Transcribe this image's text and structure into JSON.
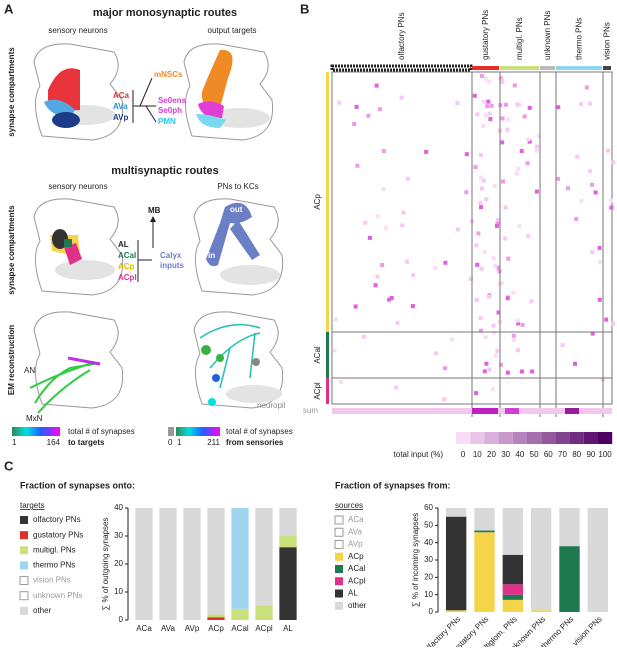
{
  "panel_a": {
    "label": "A",
    "title_mono": "major monosynaptic routes",
    "sensory_neurons": "sensory neurons",
    "output_targets": "output targets",
    "synapse_compartments": "synapse compartments",
    "inputs": [
      "ACa",
      "AVa",
      "AVp"
    ],
    "outputs": [
      "mNSCs",
      "Se0ens",
      "Se0ph",
      "PMN"
    ],
    "title_multi": "multisynaptic routes",
    "sensory_neurons_2": "sensory neurons",
    "pns_to_kcs": "PNs to KCs",
    "mb": "MB",
    "inputs_2": [
      "AL",
      "ACal",
      "ACp",
      "ACpl"
    ],
    "calyx": [
      "Calyx",
      "inputs"
    ],
    "out": "out",
    "in": "in",
    "synapse_compartments_2": "synapse compartments",
    "em": "EM reconstruction",
    "an": "AN",
    "mxn": "MxN",
    "neuropil": "neuropil",
    "scale_targets": {
      "min": 1,
      "max": 164,
      "text": "total # of synapses",
      "bold": "to targets"
    },
    "scale_sensories": {
      "zero": 0,
      "min": 1,
      "max": 211,
      "text": "total # of synapses",
      "bold": "from sensories"
    }
  },
  "panel_b": {
    "label": "B",
    "columns": [
      "olfactory PNs",
      "gustatory PNs",
      "multigl. PNs",
      "unknown PNs",
      "thermo PNs",
      "vision PNs"
    ],
    "rows": [
      "ACp",
      "ACal",
      "ACpl"
    ],
    "sum": "sum",
    "colorbar_label": "total input (%)",
    "colorbar_ticks": [
      0,
      10,
      20,
      30,
      40,
      50,
      60,
      70,
      80,
      90,
      100
    ]
  },
  "panel_c": {
    "label": "C"
  },
  "chart_data": [
    {
      "type": "bar",
      "stacked": true,
      "title": "Fraction of synapses onto:",
      "legend_title": "targets",
      "y_label": "∑ % of outgoing synapses",
      "categories": [
        "ACa",
        "AVa",
        "AVp",
        "ACp",
        "ACal",
        "ACpl",
        "AL"
      ],
      "ylim": [
        0,
        40
      ],
      "yticks": [
        0,
        10,
        20,
        30,
        40
      ],
      "series": [
        {
          "name": "olfactory PNs",
          "color": "#333333",
          "values": [
            0,
            0,
            0,
            0,
            0,
            0,
            26
          ]
        },
        {
          "name": "gustatory PNs",
          "color": "#e0302a",
          "values": [
            0,
            0,
            0,
            1,
            0,
            0,
            0
          ]
        },
        {
          "name": "multigl. PNs",
          "color": "#c9e07c",
          "values": [
            0,
            0,
            0,
            1,
            4,
            5,
            4
          ]
        },
        {
          "name": "thermo PNs",
          "color": "#9fd6ef",
          "values": [
            0,
            0,
            0,
            0,
            36,
            0,
            0
          ]
        },
        {
          "name": "vision PNs",
          "color": "#ffffff",
          "values": [
            0,
            0,
            0,
            0,
            0,
            0,
            0
          ]
        },
        {
          "name": "unknown PNs",
          "color": "#ffffff",
          "values": [
            0,
            0,
            0,
            0,
            0,
            0,
            0
          ]
        },
        {
          "name": "other",
          "color": "#d9d9d9",
          "values": [
            40,
            40,
            40,
            38,
            0,
            35,
            10
          ]
        }
      ]
    },
    {
      "type": "bar",
      "stacked": true,
      "title": "Fraction of synapses from:",
      "legend_title": "sources",
      "y_label": "∑ % of incoming synapses",
      "categories": [
        "olfactory PNs",
        "gustatory PNs",
        "multiglom. PNs",
        "unknown PNs",
        "thermo PNs",
        "vision PNs"
      ],
      "ylim": [
        0,
        60
      ],
      "yticks": [
        0,
        10,
        20,
        30,
        40,
        50,
        60
      ],
      "series": [
        {
          "name": "ACa",
          "color": "#ffffff",
          "values": [
            0,
            0,
            0,
            0,
            0,
            0
          ]
        },
        {
          "name": "AVa",
          "color": "#ffffff",
          "values": [
            0,
            0,
            0,
            0,
            0,
            0
          ]
        },
        {
          "name": "AVp",
          "color": "#ffffff",
          "values": [
            0,
            0,
            0,
            0,
            0,
            0
          ]
        },
        {
          "name": "ACp",
          "color": "#f6d44a",
          "values": [
            1,
            46,
            7,
            1,
            0,
            0
          ]
        },
        {
          "name": "ACal",
          "color": "#1e7a4e",
          "values": [
            0,
            1,
            3,
            0,
            38,
            0
          ]
        },
        {
          "name": "ACpl",
          "color": "#e0308a",
          "values": [
            0,
            0,
            6,
            0,
            0,
            0
          ]
        },
        {
          "name": "AL",
          "color": "#333333",
          "values": [
            54,
            0,
            17,
            0,
            0,
            0
          ]
        },
        {
          "name": "other",
          "color": "#d9d9d9",
          "values": [
            5,
            13,
            27,
            59,
            22,
            60
          ]
        }
      ]
    }
  ]
}
